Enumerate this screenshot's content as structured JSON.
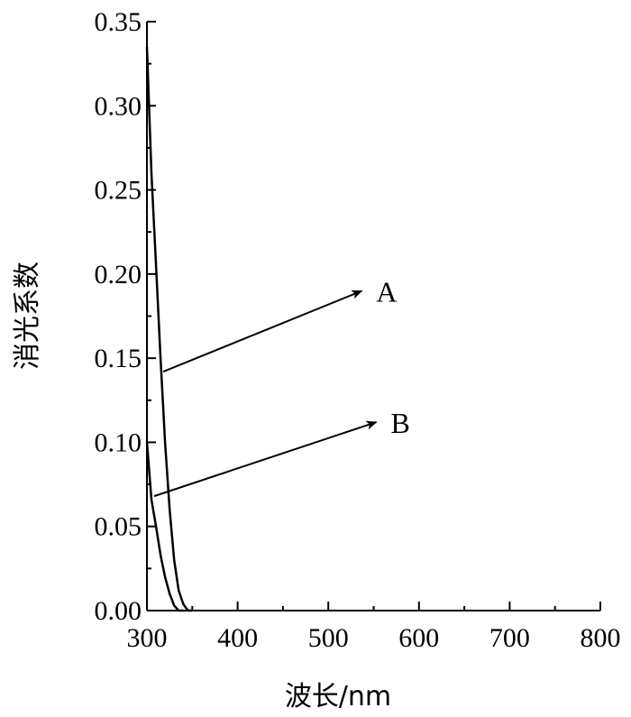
{
  "chart_data": {
    "type": "line",
    "xlabel": "波长/nm",
    "ylabel": "消光系数",
    "xlim": [
      300,
      800
    ],
    "ylim": [
      0,
      0.35
    ],
    "x_ticks": [
      "300",
      "400",
      "500",
      "600",
      "700",
      "800"
    ],
    "y_ticks": [
      "0.00",
      "0.05",
      "0.10",
      "0.15",
      "0.20",
      "0.25",
      "0.30",
      "0.35"
    ],
    "grid": false,
    "series": [
      {
        "name": "A",
        "x": [
          300,
          305,
          310,
          315,
          320,
          325,
          330,
          335,
          340,
          345,
          350
        ],
        "y": [
          0.335,
          0.26,
          0.205,
          0.15,
          0.1,
          0.06,
          0.03,
          0.012,
          0.004,
          0.0,
          0.0
        ]
      },
      {
        "name": "B",
        "x": [
          300,
          305,
          310,
          315,
          320,
          325,
          330,
          335,
          340
        ],
        "y": [
          0.1,
          0.066,
          0.05,
          0.033,
          0.02,
          0.01,
          0.003,
          0.0,
          0.0
        ]
      }
    ],
    "annotations": [
      {
        "label": "A",
        "from": [
          318,
          0.142
        ],
        "to": [
          537,
          0.19
        ]
      },
      {
        "label": "B",
        "from": [
          308,
          0.068
        ],
        "to": [
          553,
          0.112
        ]
      }
    ]
  }
}
